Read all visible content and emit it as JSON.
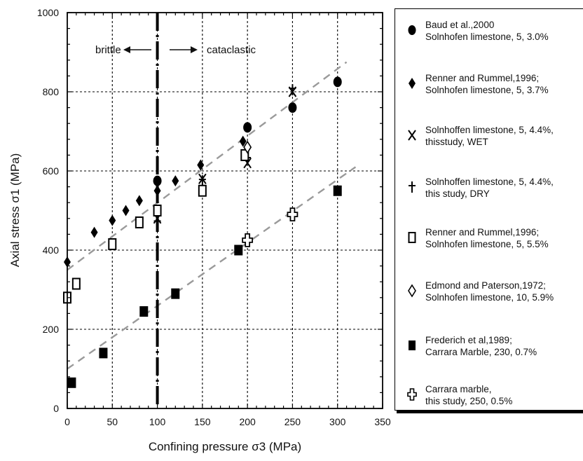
{
  "chart_data": {
    "type": "scatter",
    "xlabel": "Confining pressure σ3 (MPa)",
    "ylabel": "Axial stress σ1 (MPa)",
    "xlim": [
      0,
      350
    ],
    "ylim": [
      0,
      1000
    ],
    "x_ticks": [
      "0",
      "50",
      "100",
      "150",
      "200",
      "250",
      "300",
      "350"
    ],
    "y_ticks": [
      "0",
      "200",
      "400",
      "600",
      "800",
      "1000"
    ],
    "grid": "dashed vertical and horizontal lines",
    "legend_position": "right",
    "regime_annotations": {
      "boundary_x": 100,
      "left_label": "brittle",
      "right_label": "cataclastic"
    },
    "trend_lines": [
      {
        "x": [
          0,
          310
        ],
        "y": [
          350,
          875
        ]
      },
      {
        "x": [
          0,
          320
        ],
        "y": [
          100,
          610
        ]
      }
    ],
    "series": [
      {
        "name": "Baud et al.,2000\nSolnhofen limestone, 5, 3.0%",
        "marker": "filled-circle",
        "x": [
          100,
          200,
          250,
          300
        ],
        "y": [
          575,
          710,
          760,
          825
        ]
      },
      {
        "name": "Renner and Rummel,1996;\nSolnhofen limestone, 5, 3.7%",
        "marker": "filled-diamond",
        "x": [
          0,
          30,
          50,
          65,
          80,
          100,
          120,
          148,
          195
        ],
        "y": [
          370,
          445,
          475,
          500,
          525,
          550,
          575,
          615,
          675
        ]
      },
      {
        "name": "Solnhoffen limestone, 5, 4.4%,\nthisstudy, WET",
        "marker": "x",
        "x": [
          100,
          150,
          200,
          250
        ],
        "y": [
          480,
          580,
          620,
          800
        ]
      },
      {
        "name": "Solnhoffen limestone, 5, 4.4%,\nthis study, DRY",
        "marker": "plus",
        "x": [
          100,
          150,
          200,
          250
        ],
        "y": [
          470,
          575,
          630,
          805
        ]
      },
      {
        "name": "Renner and Rummel,1996;\nSolnhofen limestone, 5, 5.5%",
        "marker": "open-square",
        "x": [
          0,
          10,
          50,
          80,
          100,
          150,
          197
        ],
        "y": [
          280,
          315,
          415,
          470,
          500,
          550,
          640
        ]
      },
      {
        "name": "Edmond and Paterson,1972;\nSolnhofen limestone, 10, 5.9%",
        "marker": "open-diamond",
        "x": [
          200
        ],
        "y": [
          660
        ]
      },
      {
        "name": "Frederich et al,1989;\nCarrara Marble, 230, 0.7%",
        "marker": "filled-square",
        "x": [
          5,
          40,
          85,
          120,
          190,
          300
        ],
        "y": [
          65,
          140,
          245,
          290,
          400,
          550
        ]
      },
      {
        "name": "Carrara marble,\nthis study, 250, 0.5%",
        "marker": "open-cross",
        "x": [
          200,
          250
        ],
        "y": [
          425,
          490
        ]
      }
    ]
  }
}
